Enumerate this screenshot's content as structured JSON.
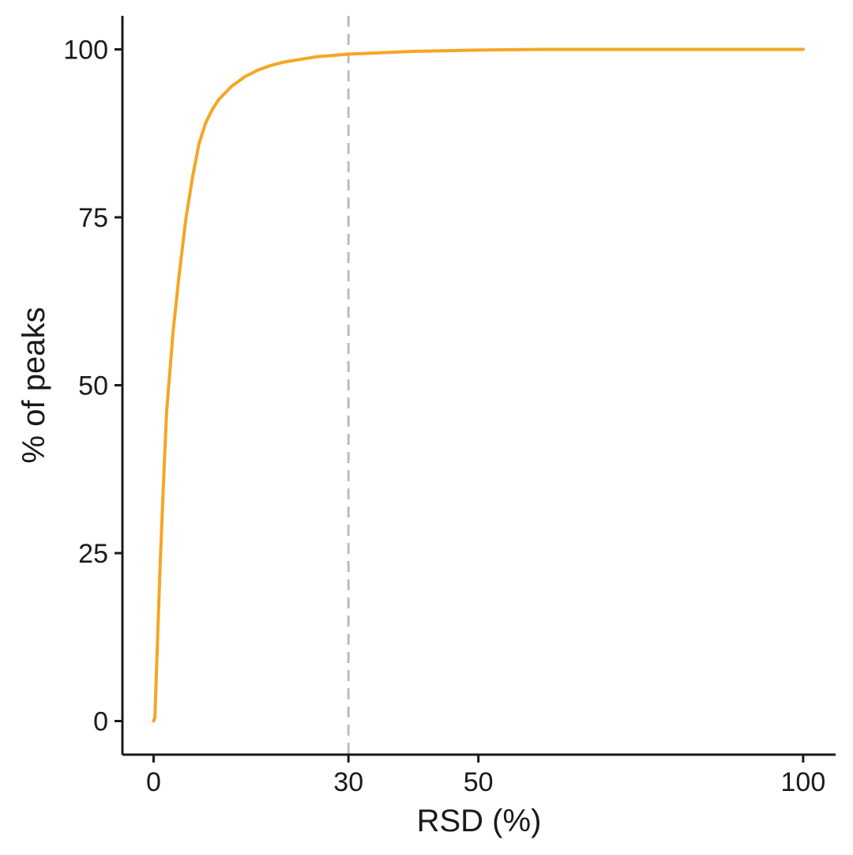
{
  "chart_data": {
    "type": "line",
    "title": "",
    "xlabel": "RSD (%)",
    "ylabel": "% of peaks",
    "xlim": [
      -4.8,
      105
    ],
    "ylim": [
      -5,
      105
    ],
    "x_ticks": [
      0,
      30,
      50,
      100
    ],
    "y_ticks": [
      0,
      25,
      50,
      75,
      100
    ],
    "grid": false,
    "legend": "none",
    "series": [
      {
        "color": "#f5a623",
        "x": [
          0,
          0.2,
          0.5,
          1,
          1.5,
          2,
          3,
          4,
          5,
          6,
          7,
          8,
          9,
          10,
          12,
          14,
          16,
          18,
          20,
          25,
          30,
          35,
          40,
          50,
          60,
          70,
          80,
          90,
          100
        ],
        "y": [
          0,
          0.5,
          9,
          23,
          35,
          46,
          58,
          67,
          75,
          81,
          86,
          89,
          91,
          92.5,
          94.5,
          95.9,
          96.9,
          97.6,
          98.1,
          98.9,
          99.3,
          99.5,
          99.7,
          99.9,
          100,
          100,
          100,
          100,
          100
        ]
      }
    ],
    "reference_lines": [
      {
        "axis": "x",
        "value": 30,
        "style": "dashed",
        "color": "#bdbdbd"
      }
    ]
  }
}
